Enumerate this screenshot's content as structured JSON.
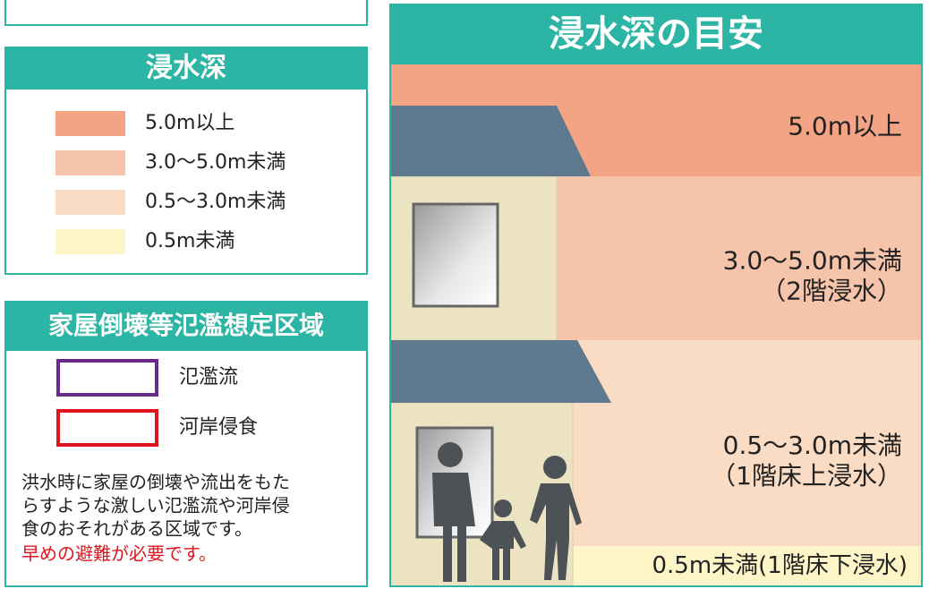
{
  "depth_legend": {
    "title": "浸水深",
    "items": [
      {
        "label": "5.0m以上",
        "color": "#f2a484"
      },
      {
        "label": "3.0〜5.0m未満",
        "color": "#f6c4ab"
      },
      {
        "label": "0.5〜3.0m未満",
        "color": "#fadcc4"
      },
      {
        "label": "0.5m未満",
        "color": "#fdf5c8"
      }
    ]
  },
  "zone_legend": {
    "title": "家屋倒壊等氾濫想定区域",
    "items": [
      {
        "label": "氾濫流",
        "color": "#6a2a8a"
      },
      {
        "label": "河岸侵食",
        "color": "#e0141e"
      }
    ],
    "note": [
      "洪水時に家屋の倒壊や流出をもた",
      "らすような激しい氾濫流や河岸侵",
      "食のおそれがある区域です。"
    ],
    "warning": "早めの避難が必要です。"
  },
  "guide": {
    "title": "浸水深の目安",
    "bands": [
      {
        "label": "5.0m以上",
        "color": "#f2a484"
      },
      {
        "label": "3.0〜5.0m未満",
        "sub": "（2階浸水）",
        "color": "#f6c4ab"
      },
      {
        "label": "0.5〜3.0m未満",
        "sub": "（1階床上浸水）",
        "color": "#fadcc4"
      },
      {
        "label": "0.5m未満(1階床下浸水)",
        "color": "#fdf5c8"
      }
    ]
  }
}
